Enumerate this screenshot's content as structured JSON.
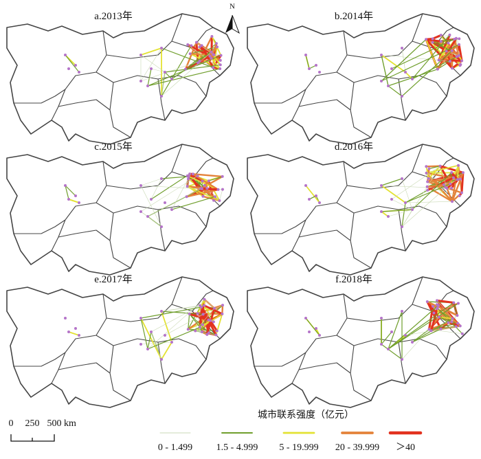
{
  "panels": [
    {
      "title": "a.2013年"
    },
    {
      "title": "b.2014年"
    },
    {
      "title": "c.2015年"
    },
    {
      "title": "d.2016年"
    },
    {
      "title": "e.2017年"
    },
    {
      "title": "f.2018年"
    }
  ],
  "north": "N",
  "scale_bar": {
    "labels": [
      "0",
      "250",
      "500"
    ],
    "unit": "km"
  },
  "legend": {
    "title": "城市联系强度（亿元）",
    "items": [
      {
        "label": "0 - 1.499",
        "color": "#c9d9b4"
      },
      {
        "label": "1.5 - 4.999",
        "color": "#6f9e2c"
      },
      {
        "label": "5 - 19.999",
        "color": "#e3e232"
      },
      {
        "label": "20 - 39.999",
        "color": "#e4823a"
      },
      {
        "label": "＞40",
        "color": "#e2321f"
      }
    ]
  }
}
